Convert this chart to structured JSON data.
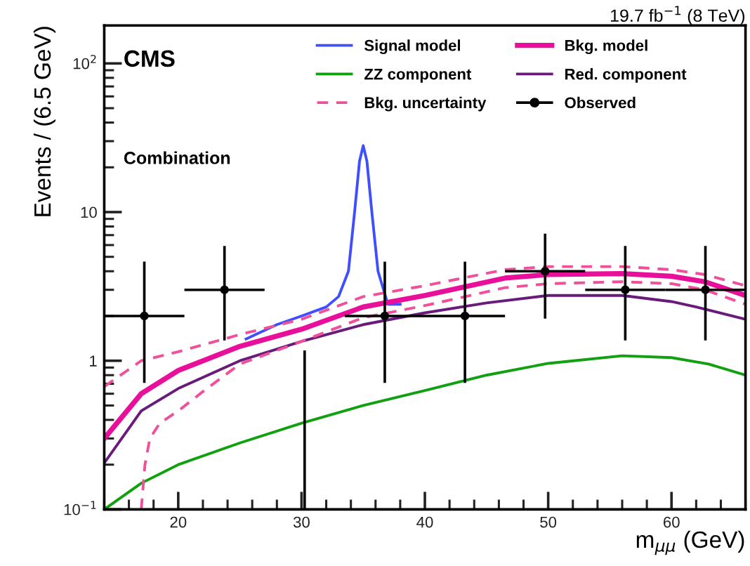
{
  "chart_data": {
    "type": "line",
    "title": "19.7 fb$^{−1}$ (8 TeV)",
    "xlabel": "m$_{μμ}$ (GeV)",
    "ylabel": "Events / (6.5 GeV)",
    "annotations": [
      "CMS",
      "Combination"
    ],
    "xlim": [
      14,
      66
    ],
    "xticks": [
      20,
      30,
      40,
      50,
      60
    ],
    "log": true,
    "ylim": [
      0.1,
      180
    ],
    "yticks": [
      {
        "value": 0.1,
        "label": "10$^{−1}$"
      },
      1,
      10,
      {
        "value": 100,
        "label": "10$^{2}$"
      }
    ],
    "grid": false,
    "legend": "top",
    "marker": "none",
    "series": [
      {
        "name": "Signal model",
        "color": "#3f4fff",
        "x": [
          25.5,
          28,
          30,
          32,
          33,
          33.8,
          34.3,
          34.7,
          35,
          35.3,
          35.7,
          36.2,
          37,
          38
        ],
        "values": [
          1.4,
          1.75,
          2.0,
          2.3,
          2.7,
          4,
          10,
          22,
          28,
          22,
          10,
          4,
          2.4,
          2.4
        ]
      },
      {
        "name": "Bkg. model",
        "color": "#e8109a",
        "x": [
          14,
          17,
          20,
          25,
          30,
          35,
          40,
          46.5,
          50,
          56,
          60,
          62.7,
          66
        ],
        "values": [
          0.3,
          0.6,
          0.86,
          1.25,
          1.63,
          2.3,
          2.75,
          3.6,
          3.8,
          3.86,
          3.7,
          3.4,
          2.75
        ]
      },
      {
        "name": "ZZ component",
        "color": "#10a010",
        "x": [
          14,
          17,
          20,
          25,
          30,
          35,
          40,
          45,
          50,
          56,
          60,
          63,
          66
        ],
        "values": [
          0.1,
          0.15,
          0.2,
          0.28,
          0.38,
          0.5,
          0.63,
          0.8,
          0.96,
          1.08,
          1.05,
          0.95,
          0.8
        ]
      },
      {
        "name": "Red. component",
        "color": "#6a1a7a",
        "x": [
          14,
          17,
          20,
          25,
          30,
          35,
          40,
          45,
          50,
          56,
          60,
          62,
          66
        ],
        "values": [
          0.205,
          0.46,
          0.65,
          1.0,
          1.35,
          1.75,
          2.1,
          2.45,
          2.75,
          2.75,
          2.5,
          2.3,
          1.9
        ]
      },
      {
        "name": "Bkg. uncertainty",
        "color": "#f0509a",
        "line_style": "dashed",
        "x": [
          14,
          17,
          20,
          25,
          30,
          35,
          40,
          46.5,
          50,
          56,
          60,
          62.7,
          66
        ],
        "values": [
          0.67,
          1.0,
          1.15,
          1.5,
          1.9,
          2.7,
          3.2,
          4.1,
          4.3,
          4.3,
          4.1,
          3.8,
          3.2
        ]
      },
      {
        "color": "#f0509a",
        "line_style": "dashed",
        "x": [
          17,
          17.3,
          17.7,
          18.5,
          20,
          22,
          25,
          30,
          35,
          40,
          46.5,
          50,
          56,
          60,
          62.7,
          66
        ],
        "values": [
          0.1,
          0.2,
          0.3,
          0.38,
          0.46,
          0.62,
          0.95,
          1.35,
          1.95,
          2.35,
          3.1,
          3.3,
          3.4,
          3.3,
          3.0,
          2.4
        ]
      },
      {
        "color": "#000000",
        "x": [
          30.25,
          30.25
        ],
        "values": [
          0.1,
          1.15
        ]
      },
      {
        "name": "Observed",
        "type": "scatter",
        "color": "#000000",
        "marker": "circle",
        "x": [
          17.25,
          23.75,
          30.25,
          36.75,
          43.25,
          49.75,
          56.25,
          62.75
        ],
        "values": [
          2,
          3,
          null,
          2,
          2,
          4,
          3,
          3
        ],
        "errors": [
          [
            0.71,
            4.64
          ],
          [
            1.37,
            5.92
          ],
          null,
          [
            0.71,
            4.64
          ],
          [
            0.71,
            4.64
          ],
          [
            1.92,
            7.16
          ],
          [
            1.37,
            5.92
          ],
          [
            1.37,
            5.92
          ]
        ],
        "xerrors": [
          3.25,
          3.25,
          null,
          3.25,
          3.25,
          3.25,
          3.25,
          3.25
        ]
      }
    ]
  }
}
